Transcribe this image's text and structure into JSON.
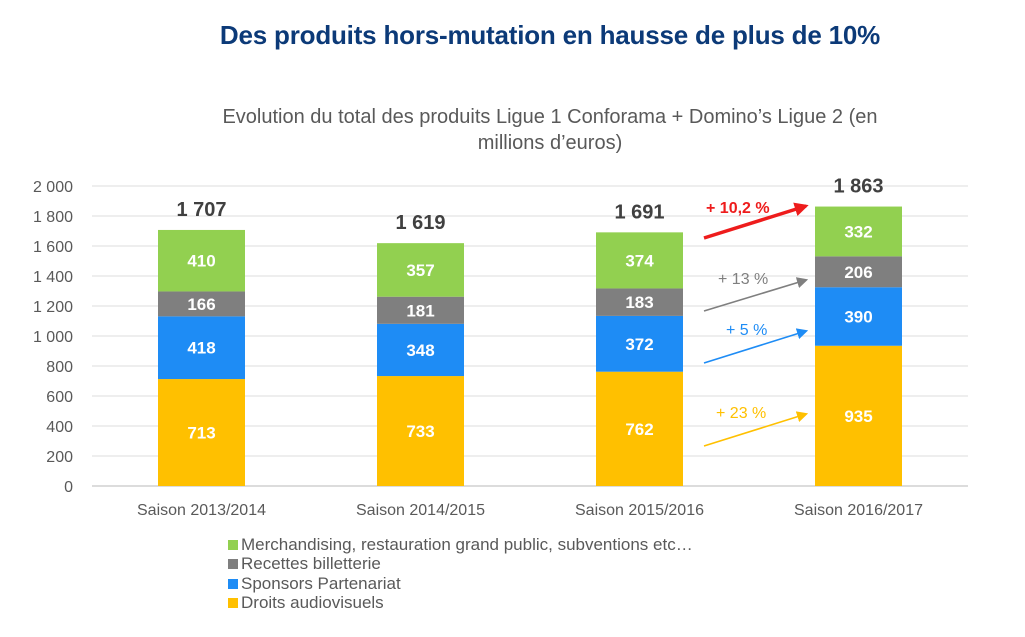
{
  "header": {
    "title": "Des produits hors-mutation en hausse de plus de 10%"
  },
  "chart_data": {
    "type": "bar",
    "stacked": true,
    "title": "Evolution du total des produits Ligue 1 Conforama + Domino’s Ligue 2 (en millions d’euros)",
    "title_lines": [
      "Evolution du total des produits Ligue 1 Conforama + Domino’s Ligue 2 (en",
      "millions d’euros)"
    ],
    "xlabel": "",
    "ylabel": "",
    "ylim": [
      0,
      2000
    ],
    "yticks": [
      0,
      200,
      400,
      600,
      800,
      1000,
      1200,
      1400,
      1600,
      1800,
      2000
    ],
    "ytick_labels": [
      "0",
      "200",
      "400",
      "600",
      "800",
      "1 000",
      "1 200",
      "1 400",
      "1 600",
      "1 800",
      "2 000"
    ],
    "grid": true,
    "legend_position": "bottom-left",
    "categories": [
      "Saison 2013/2014",
      "Saison 2014/2015",
      "Saison 2015/2016",
      "Saison 2016/2017"
    ],
    "series": [
      {
        "name": "Droits audiovisuels",
        "color": "#ffc000",
        "values": [
          713,
          733,
          762,
          935
        ]
      },
      {
        "name": "Sponsors Partenariat",
        "color": "#1e8cf5",
        "values": [
          418,
          348,
          372,
          390
        ]
      },
      {
        "name": "Recettes billetterie",
        "color": "#7f7f7f",
        "values": [
          166,
          181,
          183,
          206
        ]
      },
      {
        "name": "Merchandising, restauration grand public, subventions etc…",
        "color": "#92d050",
        "values": [
          410,
          357,
          374,
          332
        ]
      }
    ],
    "totals": [
      1707,
      1619,
      1691,
      1863
    ],
    "total_labels": [
      "1 707",
      "1 619",
      "1 691",
      "1 863"
    ],
    "legend_order": [
      3,
      2,
      1,
      0
    ],
    "annotations": [
      {
        "text": "+ 10,2 %",
        "series": "Total",
        "color": "#ee1c1c",
        "bold": true
      },
      {
        "text": "+ 13 %",
        "series": "Recettes billetterie",
        "color": "#7f7f7f",
        "bold": false
      },
      {
        "text": "+ 5 %",
        "series": "Sponsors Partenariat",
        "color": "#1e8cf5",
        "bold": false
      },
      {
        "text": "+ 23 %",
        "series": "Droits audiovisuels",
        "color": "#ffc000",
        "bold": false
      }
    ]
  }
}
